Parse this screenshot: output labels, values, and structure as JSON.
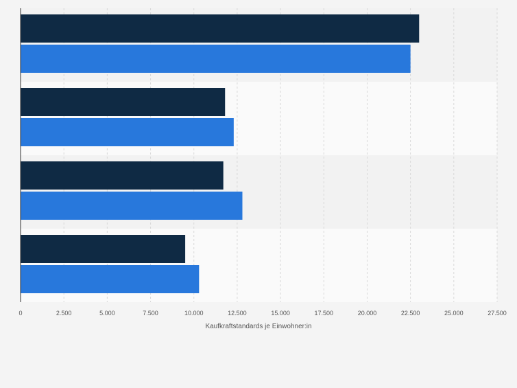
{
  "chart_data": {
    "type": "bar",
    "orientation": "horizontal",
    "categories": [
      "",
      "",
      "",
      ""
    ],
    "series": [
      {
        "values": [
          23000,
          11800,
          11700,
          9500
        ]
      },
      {
        "values": [
          22500,
          12300,
          12800,
          10300
        ]
      }
    ],
    "xlabel": "Kaufkraftstandards je Einwohner:in",
    "ylabel": "",
    "xlim": [
      0,
      27500
    ],
    "x_ticks": [
      "0",
      "2.500",
      "5.000",
      "7.500",
      "10.000",
      "12.500",
      "15.000",
      "17.500",
      "20.000",
      "22.500",
      "25.000",
      "27.500"
    ],
    "grid": "vertical-dashed",
    "colors": {
      "series_0": "#0f2a44",
      "series_1": "#2878dc",
      "band_a": "#f2f2f2",
      "band_b": "#fafafa",
      "grid": "#d8d8d8",
      "axis": "#333333",
      "tick_text": "#555555"
    }
  }
}
